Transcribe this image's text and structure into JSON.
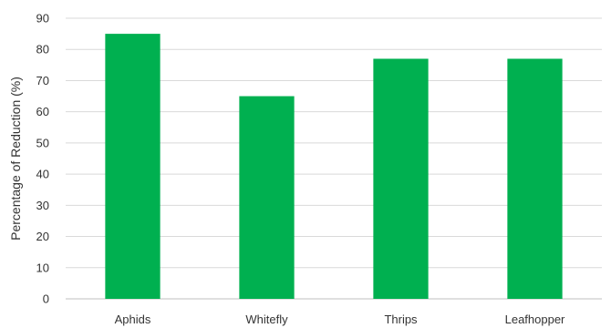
{
  "chart_data": {
    "type": "bar",
    "categories": [
      "Aphids",
      "Whitefly",
      "Thrips",
      "Leafhopper"
    ],
    "values": [
      85,
      65,
      77,
      77
    ],
    "title": "",
    "xlabel": "",
    "ylabel": "Percentage of Reduction (%)",
    "ylim": [
      0,
      90
    ],
    "yticks": [
      0,
      10,
      20,
      30,
      40,
      50,
      60,
      70,
      80,
      90
    ],
    "grid": true,
    "legend": "none",
    "bar_color": "#00b050"
  }
}
